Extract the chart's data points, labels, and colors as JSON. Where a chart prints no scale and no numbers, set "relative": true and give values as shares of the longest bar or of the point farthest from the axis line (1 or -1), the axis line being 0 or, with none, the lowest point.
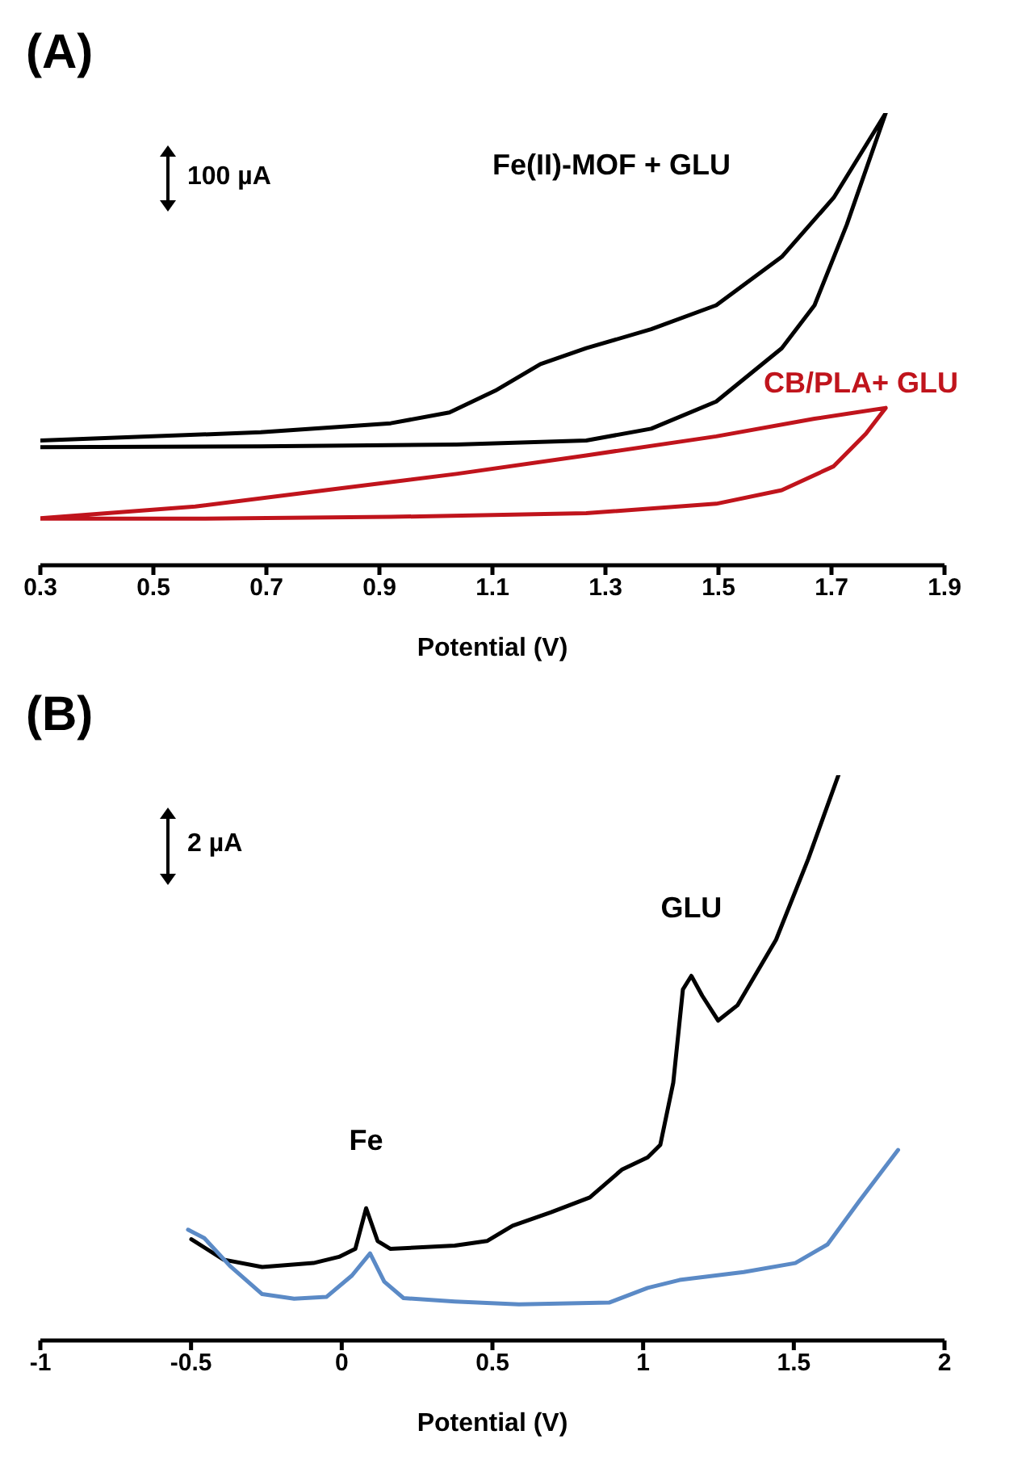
{
  "chart_data": [
    {
      "type": "line",
      "title": "(A)",
      "xlabel": "Potential (V)",
      "relative": true,
      "xlim": [
        0.3,
        1.9
      ],
      "xticks": [
        0.3,
        0.5,
        0.7,
        0.9,
        1.1,
        1.3,
        1.5,
        1.7,
        1.9
      ],
      "annotations": [
        "100 µA"
      ],
      "series": [
        {
          "name": "Fe(II)-MOF + GLU",
          "color": "#000000",
          "x": [
            0.3,
            0.69,
            0.92,
            1.024,
            1.105,
            1.185,
            1.266,
            1.381,
            1.496,
            1.612,
            1.704,
            1.796,
            1.727,
            1.67,
            1.612,
            1.496,
            1.381,
            1.266,
            1.036,
            0.69,
            0.3
          ],
          "values": [
            0.276,
            0.294,
            0.314,
            0.338,
            0.386,
            0.445,
            0.48,
            0.522,
            0.575,
            0.682,
            0.813,
            1.0,
            0.753,
            0.575,
            0.48,
            0.362,
            0.302,
            0.276,
            0.267,
            0.263,
            0.261
          ]
        },
        {
          "name": "CB/PLA+ GLU",
          "color": "#c0141c",
          "x": [
            0.3,
            0.574,
            0.805,
            1.036,
            1.266,
            1.496,
            1.67,
            1.796,
            1.761,
            1.704,
            1.612,
            1.496,
            1.266,
            0.92,
            0.574,
            0.3
          ],
          "values": [
            0.104,
            0.13,
            0.166,
            0.202,
            0.243,
            0.285,
            0.324,
            0.348,
            0.291,
            0.219,
            0.166,
            0.136,
            0.115,
            0.107,
            0.103,
            0.103
          ]
        }
      ]
    },
    {
      "type": "line",
      "title": "(B)",
      "xlabel": "Potential (V)",
      "relative": true,
      "xlim": [
        -1,
        2
      ],
      "xticks": [
        -1,
        -0.5,
        0,
        0.5,
        1,
        1.5,
        2
      ],
      "annotations": [
        "2 µA",
        {
          "text": "Fe",
          "x": 0.081,
          "y": 0.234
        },
        {
          "text": "GLU",
          "x": 1.16,
          "y": 0.645
        }
      ],
      "series": [
        {
          "color": "#000000",
          "x": [
            -0.499,
            -0.392,
            -0.264,
            -0.094,
            -0.009,
            0.045,
            0.081,
            0.119,
            0.162,
            0.375,
            0.482,
            0.567,
            0.695,
            0.823,
            0.929,
            1.015,
            1.057,
            1.1,
            1.132,
            1.16,
            1.196,
            1.249,
            1.313,
            1.441,
            1.548,
            1.648
          ],
          "values": [
            0.179,
            0.143,
            0.13,
            0.137,
            0.148,
            0.162,
            0.234,
            0.176,
            0.162,
            0.168,
            0.176,
            0.203,
            0.227,
            0.253,
            0.302,
            0.324,
            0.346,
            0.456,
            0.621,
            0.645,
            0.61,
            0.566,
            0.593,
            0.709,
            0.852,
            1.0
          ]
        },
        {
          "color": "#5b8ac6",
          "x": [
            -0.51,
            -0.456,
            -0.371,
            -0.264,
            -0.158,
            -0.051,
            0.034,
            0.094,
            0.141,
            0.205,
            0.375,
            0.588,
            0.887,
            1.015,
            1.121,
            1.334,
            1.505,
            1.612,
            1.718,
            1.846
          ],
          "values": [
            0.196,
            0.181,
            0.132,
            0.082,
            0.074,
            0.077,
            0.115,
            0.154,
            0.104,
            0.075,
            0.069,
            0.064,
            0.067,
            0.093,
            0.107,
            0.121,
            0.137,
            0.17,
            0.247,
            0.337
          ]
        }
      ]
    }
  ]
}
